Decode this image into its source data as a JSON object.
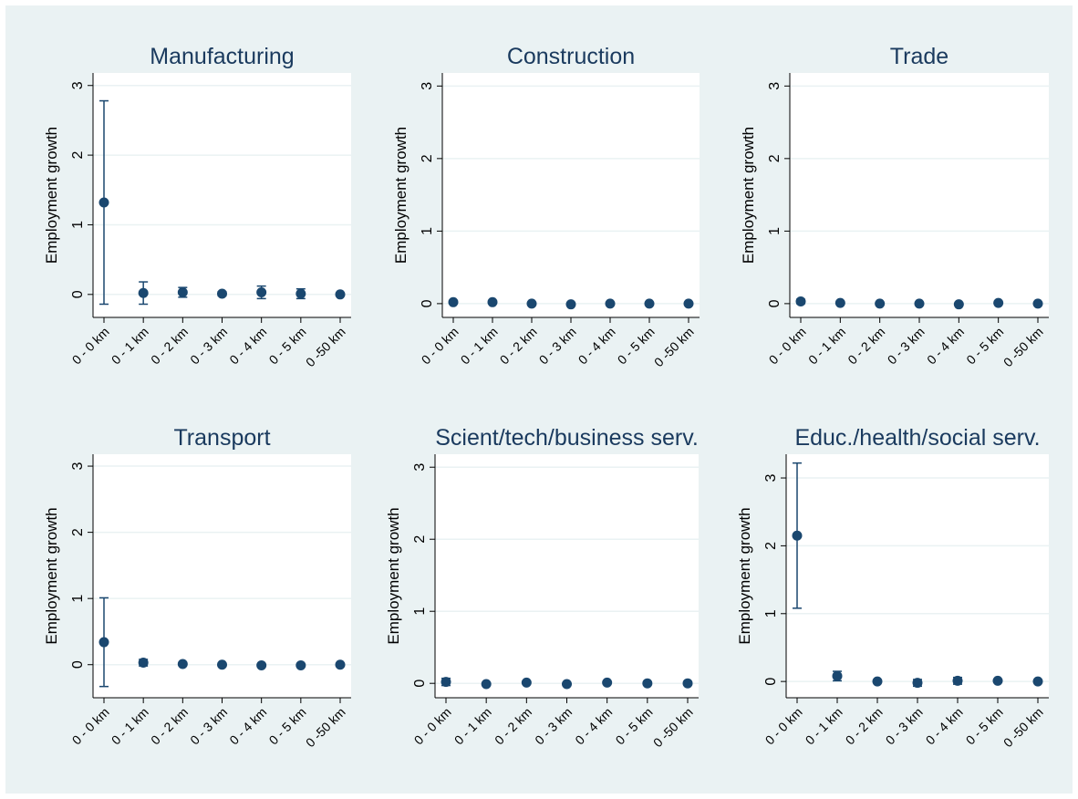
{
  "chart_data": [
    {
      "type": "errorbar",
      "title": "Manufacturing",
      "ylabel": "Employment growth",
      "categories": [
        "0 - 0 km",
        "0 - 1 km",
        "0 - 2 km",
        "0 - 3 km",
        "0 - 4 km",
        "0 - 5 km",
        "0 -50 km"
      ],
      "values": [
        1.32,
        0.02,
        0.03,
        0.01,
        0.03,
        0.01,
        0.0
      ],
      "errors": [
        1.46,
        0.16,
        0.07,
        0.03,
        0.09,
        0.07,
        0.02
      ],
      "color": "#1a476f",
      "ylim": [
        -0.33,
        3.18
      ],
      "yticks": [
        0,
        1,
        2,
        3
      ],
      "grid": true
    },
    {
      "type": "errorbar",
      "title": "Construction",
      "ylabel": "Employment growth",
      "categories": [
        "0 - 0 km",
        "0 - 1 km",
        "0 - 2 km",
        "0 - 3 km",
        "0 - 4 km",
        "0 - 5 km",
        "0 -50 km"
      ],
      "values": [
        0.02,
        0.02,
        0.0,
        -0.01,
        0.0,
        0.0,
        0.0
      ],
      "errors": [
        0.02,
        0.02,
        0.01,
        0.01,
        0.01,
        0.01,
        0.01
      ],
      "color": "#1a476f",
      "ylim": [
        -0.19,
        3.18
      ],
      "yticks": [
        0,
        1,
        2,
        3
      ],
      "grid": true
    },
    {
      "type": "errorbar",
      "title": "Trade",
      "ylabel": "Employment growth",
      "categories": [
        "0 - 0 km",
        "0 - 1 km",
        "0 - 2 km",
        "0 - 3 km",
        "0 - 4 km",
        "0 - 5 km",
        "0 -50 km"
      ],
      "values": [
        0.03,
        0.01,
        0.0,
        0.0,
        -0.01,
        0.01,
        0.0
      ],
      "errors": [
        0.03,
        0.01,
        0.01,
        0.01,
        0.01,
        0.01,
        0.01
      ],
      "color": "#1a476f",
      "ylim": [
        -0.19,
        3.18
      ],
      "yticks": [
        0,
        1,
        2,
        3
      ],
      "grid": true
    },
    {
      "type": "errorbar",
      "title": "Transport",
      "ylabel": "Employment growth",
      "categories": [
        "0 - 0 km",
        "0 - 1 km",
        "0 - 2 km",
        "0 - 3 km",
        "0 - 4 km",
        "0 - 5 km",
        "0 -50 km"
      ],
      "values": [
        0.34,
        0.03,
        0.01,
        0.0,
        -0.01,
        -0.01,
        0.0
      ],
      "errors": [
        0.67,
        0.05,
        0.02,
        0.01,
        0.01,
        0.01,
        0.01
      ],
      "color": "#1a476f",
      "ylim": [
        -0.5,
        3.18
      ],
      "yticks": [
        0,
        1,
        2,
        3
      ],
      "grid": true
    },
    {
      "type": "errorbar",
      "title": "Scient/tech/business serv.",
      "ylabel": "Employment growth",
      "categories": [
        "0 - 0 km",
        "0 - 1 km",
        "0 - 2 km",
        "0 - 3 km",
        "0 - 4 km",
        "0 - 5 km",
        "0 -50 km"
      ],
      "values": [
        0.02,
        -0.01,
        0.01,
        -0.01,
        0.01,
        0.0,
        0.0
      ],
      "errors": [
        0.05,
        0.01,
        0.01,
        0.01,
        0.01,
        0.01,
        0.01
      ],
      "color": "#1a476f",
      "ylim": [
        -0.2,
        3.18
      ],
      "yticks": [
        0,
        1,
        2,
        3
      ],
      "grid": true
    },
    {
      "type": "errorbar",
      "title": "Educ./health/social serv.",
      "ylabel": "Employment growth",
      "categories": [
        "0 - 0 km",
        "0 - 1 km",
        "0 - 2 km",
        "0 - 3 km",
        "0 - 4 km",
        "0 - 5 km",
        "0 -50 km"
      ],
      "values": [
        2.15,
        0.08,
        0.0,
        -0.02,
        0.01,
        0.01,
        0.0
      ],
      "errors": [
        1.07,
        0.07,
        0.02,
        0.05,
        0.05,
        0.02,
        0.01
      ],
      "color": "#1a476f",
      "ylim": [
        -0.24,
        3.35
      ],
      "yticks": [
        0,
        1,
        2,
        3
      ],
      "grid": true
    }
  ]
}
